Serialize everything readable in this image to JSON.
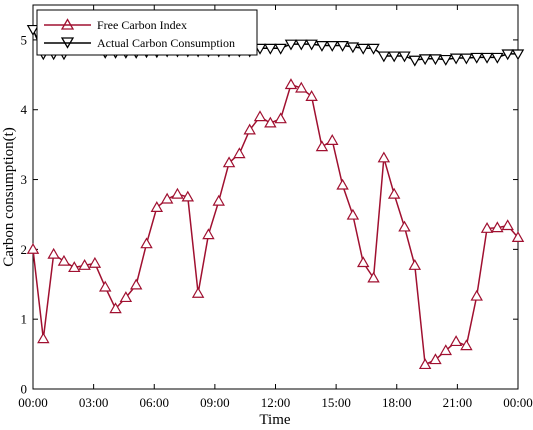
{
  "chart_data": {
    "type": "line",
    "xlabel": "Time",
    "ylabel": "Carbon consumption(t)",
    "xlim": [
      0,
      47
    ],
    "ylim": [
      0,
      5.5
    ],
    "x_ticks": [
      "00:00",
      "03:00",
      "06:00",
      "09:00",
      "12:00",
      "15:00",
      "18:00",
      "21:00",
      "00:00"
    ],
    "y_ticks": [
      "0",
      "1",
      "2",
      "3",
      "4",
      "5"
    ],
    "grid": false,
    "legend_position": "top-left",
    "series": [
      {
        "name": "Free Carbon Index",
        "color": "#a01030",
        "marker": "triangle-up",
        "values": [
          2.0,
          0.72,
          1.93,
          1.83,
          1.74,
          1.77,
          1.8,
          1.46,
          1.15,
          1.31,
          1.49,
          2.08,
          2.6,
          2.72,
          2.79,
          2.75,
          1.37,
          2.21,
          2.69,
          3.24,
          3.37,
          3.71,
          3.9,
          3.81,
          3.87,
          4.36,
          4.31,
          4.19,
          3.47,
          3.56,
          2.92,
          2.49,
          1.81,
          1.59,
          3.31,
          2.79,
          2.32,
          1.77,
          0.35,
          0.42,
          0.55,
          0.68,
          0.62,
          1.33,
          2.3,
          2.31,
          2.34,
          2.17
        ]
      },
      {
        "name": "Actual Carbon Consumption",
        "color": "#000000",
        "marker": "triangle-down",
        "values": [
          5.15,
          4.8,
          4.8,
          4.8,
          5.02,
          5.02,
          5.02,
          4.82,
          4.82,
          4.82,
          4.82,
          4.83,
          4.83,
          4.84,
          4.84,
          4.84,
          4.84,
          4.84,
          4.84,
          4.84,
          4.84,
          4.84,
          4.88,
          4.88,
          4.88,
          4.94,
          4.94,
          4.94,
          4.92,
          4.92,
          4.92,
          4.9,
          4.88,
          4.88,
          4.77,
          4.77,
          4.77,
          4.71,
          4.73,
          4.73,
          4.72,
          4.74,
          4.74,
          4.75,
          4.75,
          4.75,
          4.8,
          4.8
        ]
      }
    ]
  }
}
